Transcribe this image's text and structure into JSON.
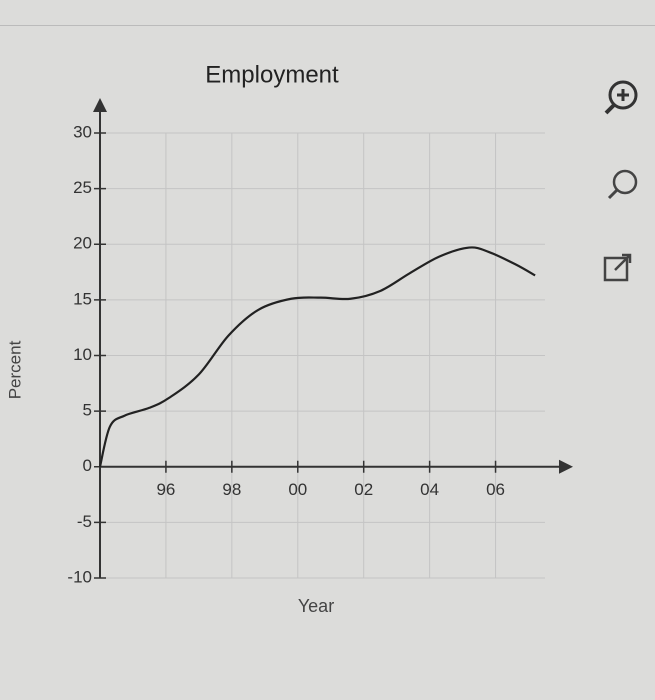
{
  "chart_data": {
    "type": "line",
    "title": "Employment",
    "xlabel": "Year",
    "ylabel": "Percent",
    "x": [
      1994,
      1994.3,
      1994.75,
      1995.5,
      1996.1,
      1997,
      1997.9,
      1998.8,
      1999.8,
      2000.7,
      2001.6,
      2002.5,
      2003.4,
      2004.3,
      2005.2,
      2005.8,
      2006.6,
      2007.2
    ],
    "series": [
      {
        "color": "#222222",
        "values": [
          0,
          3.6,
          4.6,
          5.3,
          6.2,
          8.3,
          11.8,
          14.1,
          15.1,
          15.2,
          15.1,
          15.8,
          17.4,
          18.9,
          19.7,
          19.3,
          18.2,
          17.2
        ]
      }
    ],
    "xlim": [
      1994,
      2007.5
    ],
    "xticks": [
      {
        "value": 1996,
        "label": "96"
      },
      {
        "value": 1998,
        "label": "98"
      },
      {
        "value": 2000,
        "label": "00"
      },
      {
        "value": 2002,
        "label": "02"
      },
      {
        "value": 2004,
        "label": "04"
      },
      {
        "value": 2006,
        "label": "06"
      }
    ],
    "ylim": [
      -10,
      30
    ],
    "yticks": [
      -10,
      -5,
      0,
      5,
      10,
      15,
      20,
      25,
      30
    ],
    "grid": true
  }
}
